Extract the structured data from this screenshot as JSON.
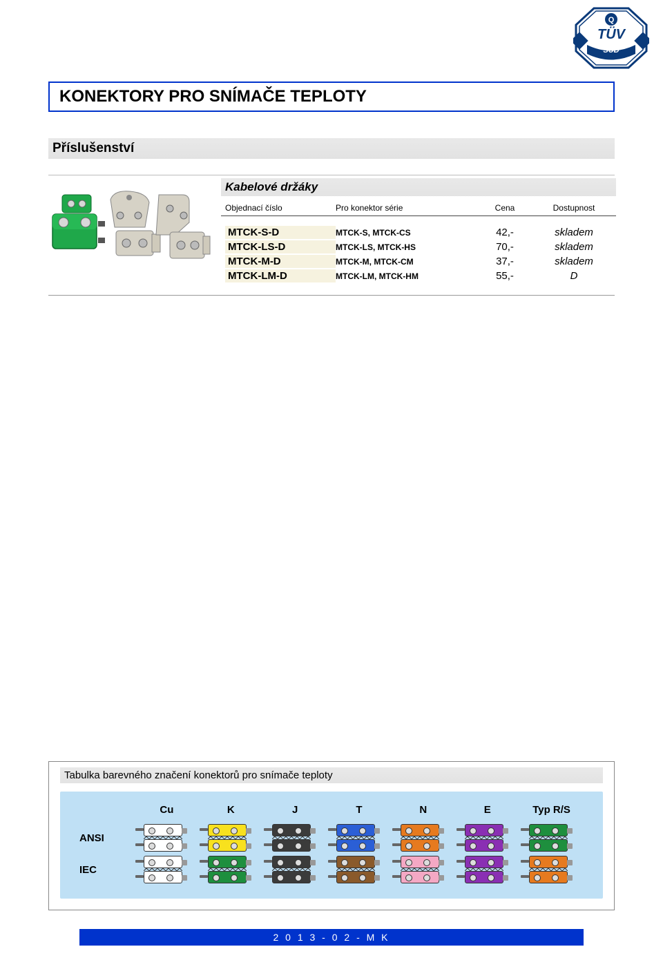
{
  "page_title": "KONEKTORY PRO SNÍMAČE TEPLOTY",
  "section_title": "Příslušenství",
  "subsection_title": "Kabelové držáky",
  "table": {
    "headers": [
      "Objednací číslo",
      "Pro konektor série",
      "Cena",
      "Dostupnost"
    ],
    "rows": [
      {
        "code": "MTCK-S-D",
        "series": "MTCK-S, MTCK-CS",
        "price": "42,-",
        "avail": "skladem"
      },
      {
        "code": "MTCK-LS-D",
        "series": "MTCK-LS, MTCK-HS",
        "price": "70,-",
        "avail": "skladem"
      },
      {
        "code": "MTCK-M-D",
        "series": "MTCK-M, MTCK-CM",
        "price": "37,-",
        "avail": "skladem"
      },
      {
        "code": "MTCK-LM-D",
        "series": "MTCK-LM, MTCK-HM",
        "price": "55,-",
        "avail": "D"
      }
    ]
  },
  "color_table": {
    "title": "Tabulka barevného značení konektorů pro snímače teploty",
    "row_labels": [
      "ANSI",
      "IEC"
    ],
    "types": [
      "Cu",
      "K",
      "J",
      "T",
      "N",
      "E",
      "Typ R/S"
    ],
    "panel_bg": "#bfe0f5",
    "cells": {
      "ANSI": [
        {
          "top": "#ffffff",
          "bot": "#ffffff"
        },
        {
          "top": "#f8e11e",
          "bot": "#f8e11e"
        },
        {
          "top": "#3b3b3b",
          "bot": "#3b3b3b"
        },
        {
          "top": "#2b5fd6",
          "bot": "#2b5fd6"
        },
        {
          "top": "#e67a1f",
          "bot": "#e67a1f"
        },
        {
          "top": "#8a2fb3",
          "bot": "#8a2fb3"
        },
        {
          "top": "#1e8f3e",
          "bot": "#1e8f3e"
        }
      ],
      "IEC": [
        {
          "top": "#ffffff",
          "bot": "#ffffff"
        },
        {
          "top": "#1e8f3e",
          "bot": "#1e8f3e"
        },
        {
          "top": "#3b3b3b",
          "bot": "#3b3b3b"
        },
        {
          "top": "#8a5a2b",
          "bot": "#8a5a2b"
        },
        {
          "top": "#f4a8c4",
          "bot": "#f4a8c4"
        },
        {
          "top": "#8a2fb3",
          "bot": "#8a2fb3"
        },
        {
          "top": "#e67a1f",
          "bot": "#e67a1f"
        }
      ]
    }
  },
  "footer": "2 0 1 3 - 0 2 - M K",
  "logo": {
    "text": "TÜV",
    "sub": "SÜD",
    "ribbon_color": "#0a3a7a",
    "octagon_stroke": "#0a3a7a"
  },
  "colors": {
    "title_border": "#0033cc",
    "footer_bg": "#0033cc",
    "row_highlight": "#f6f2df"
  }
}
